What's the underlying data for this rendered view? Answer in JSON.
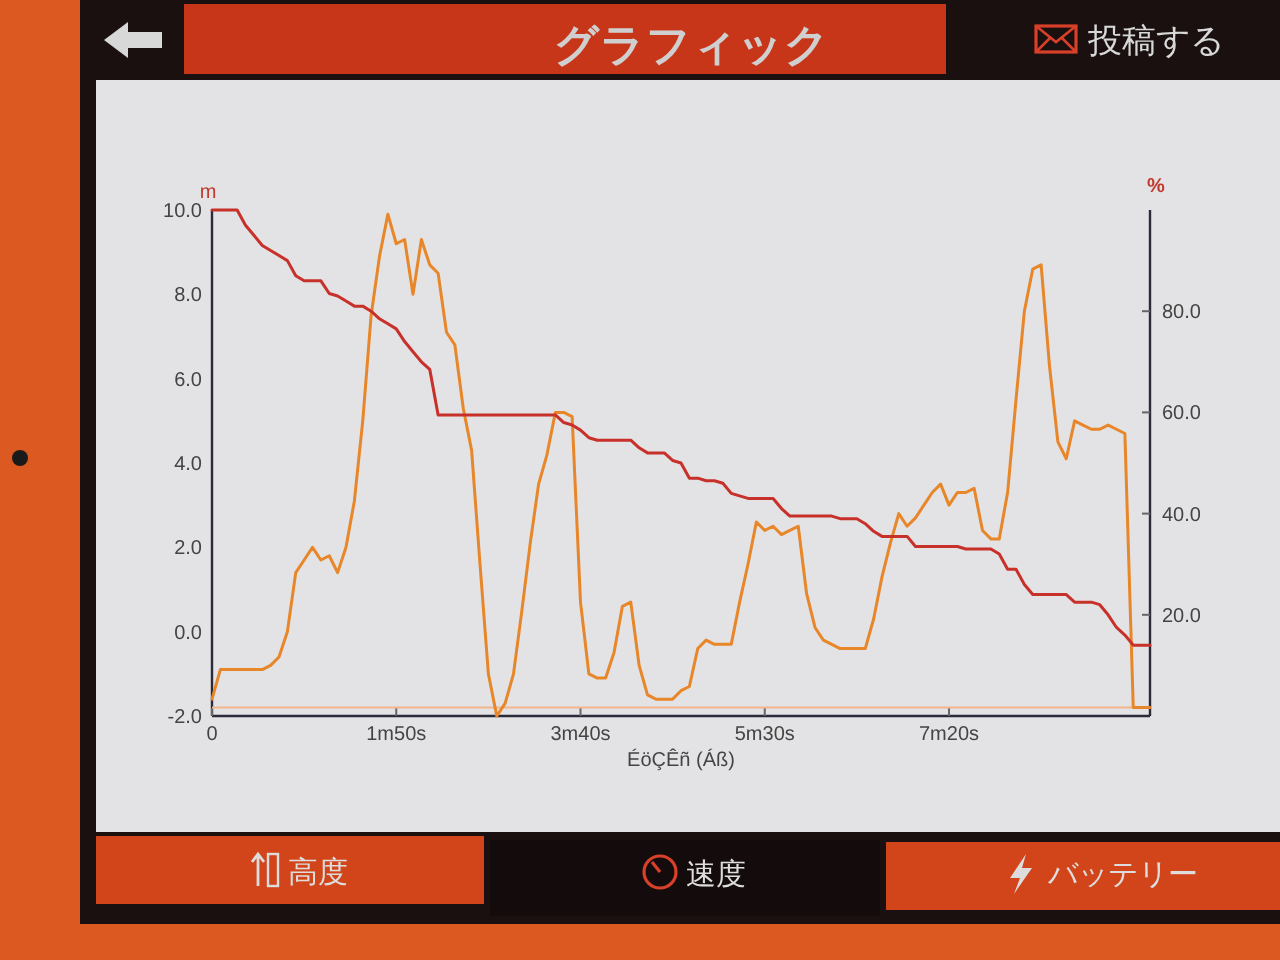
{
  "chart_data": {
    "type": "line",
    "title": "グラフィック",
    "xlabel": "ÉöÇÊñ (Áß)",
    "ylabel": "m",
    "y2label": "%",
    "annotations": [
      "投稿する",
      "高度",
      "速度",
      "バッテリー"
    ],
    "categories": [
      "0",
      null,
      null,
      null,
      null,
      null,
      null,
      null,
      null,
      null,
      null,
      null,
      null,
      null,
      null,
      null,
      null,
      null,
      null,
      null,
      null,
      null,
      "1m50s",
      null,
      null,
      null,
      null,
      null,
      null,
      null,
      null,
      null,
      null,
      null,
      null,
      null,
      null,
      null,
      null,
      null,
      null,
      null,
      null,
      null,
      "3m40s",
      null,
      null,
      null,
      null,
      null,
      null,
      null,
      null,
      null,
      null,
      null,
      null,
      null,
      null,
      null,
      null,
      null,
      null,
      null,
      null,
      null,
      "5m30s",
      null,
      null,
      null,
      null,
      null,
      null,
      null,
      null,
      null,
      null,
      null,
      null,
      null,
      null,
      null,
      null,
      null,
      null,
      null,
      null,
      null,
      "7m20s",
      null,
      null,
      null,
      null,
      null,
      null,
      null,
      null,
      null,
      null,
      null,
      null,
      null,
      null,
      null,
      null,
      null,
      null,
      null,
      null,
      null,
      null,
      null,
      null
    ],
    "ylim": [
      -2,
      10
    ],
    "yticks": [
      {
        "value": -2,
        "label": "-2.0"
      },
      {
        "value": 0,
        "label": "0.0"
      },
      {
        "value": 2,
        "label": "2.0"
      },
      {
        "value": 4,
        "label": "4.0"
      },
      {
        "value": 6,
        "label": "6.0"
      },
      {
        "value": 8,
        "label": "8.0"
      },
      {
        "value": 10,
        "label": "10.0"
      }
    ],
    "y2lim": [
      0,
      100
    ],
    "y2ticks": [
      {
        "value": 20,
        "label": "20.0"
      },
      {
        "value": 40,
        "label": "40.0"
      },
      {
        "value": 60,
        "label": "60.0"
      },
      {
        "value": 80,
        "label": "80.0"
      }
    ],
    "ref_lines": [
      {
        "axis": "y",
        "value": -1.8,
        "color": "#f2b48a"
      }
    ],
    "series": [
      {
        "color": "#e8862a",
        "values": [
          -1.6,
          -0.9,
          -0.9,
          -0.9,
          -0.9,
          -0.9,
          -0.9,
          -0.8,
          -0.6,
          0.0,
          1.4,
          1.7,
          2.0,
          1.7,
          1.8,
          1.4,
          2.0,
          3.1,
          5.0,
          7.5,
          8.9,
          9.9,
          9.2,
          9.3,
          8.0,
          9.3,
          8.7,
          8.5,
          7.1,
          6.8,
          5.3,
          4.3,
          1.6,
          -1.0,
          -2.0,
          -1.7,
          -1.0,
          0.5,
          2.1,
          3.5,
          4.2,
          5.2,
          5.2,
          5.1,
          0.7,
          -1.0,
          -1.1,
          -1.1,
          -0.5,
          0.6,
          0.7,
          -0.8,
          -1.5,
          -1.6,
          -1.6,
          -1.6,
          -1.4,
          -1.3,
          -0.4,
          -0.2,
          -0.3,
          -0.3,
          -0.3,
          0.7,
          1.6,
          2.6,
          2.4,
          2.5,
          2.3,
          2.4,
          2.5,
          0.9,
          0.1,
          -0.2,
          -0.3,
          -0.4,
          -0.4,
          -0.4,
          -0.4,
          0.3,
          1.3,
          2.1,
          2.8,
          2.5,
          2.7,
          3.0,
          3.3,
          3.5,
          3.0,
          3.3,
          3.3,
          3.4,
          2.4,
          2.2,
          2.2,
          3.3,
          5.5,
          7.6,
          8.6,
          8.7,
          6.3,
          4.5,
          4.1,
          5.0,
          4.9,
          4.8,
          4.8,
          4.9,
          4.8,
          4.7,
          -1.8,
          -1.8,
          -1.8
        ]
      },
      {
        "color": "#c8302a",
        "axis": "y2",
        "values": [
          100,
          100,
          100,
          100,
          97,
          95,
          93,
          92,
          91,
          90,
          87,
          86,
          86,
          86,
          83.5,
          83,
          82,
          81,
          81,
          80,
          78.5,
          77.5,
          76.5,
          74,
          72,
          70,
          68.5,
          59.5,
          59.5,
          59.5,
          59.5,
          59.5,
          59.5,
          59.5,
          59.5,
          59.5,
          59.5,
          59.5,
          59.5,
          59.5,
          59.5,
          59.5,
          58,
          57.5,
          56.5,
          55,
          54.5,
          54.5,
          54.5,
          54.5,
          54.5,
          53,
          52,
          52,
          52,
          50.5,
          50,
          47,
          47,
          46.5,
          46.5,
          46,
          44,
          43.5,
          43,
          43,
          43,
          43,
          41,
          39.5,
          39.5,
          39.5,
          39.5,
          39.5,
          39.5,
          39,
          39,
          39,
          38,
          36.5,
          35.5,
          35.5,
          35.5,
          35.5,
          33.5,
          33.5,
          33.5,
          33.5,
          33.5,
          33.5,
          33,
          33,
          33,
          33,
          32,
          29,
          29,
          26,
          24,
          24,
          24,
          24,
          24,
          22.5,
          22.5,
          22.5,
          22,
          20,
          17.5,
          16,
          14,
          14,
          14
        ]
      }
    ]
  }
}
